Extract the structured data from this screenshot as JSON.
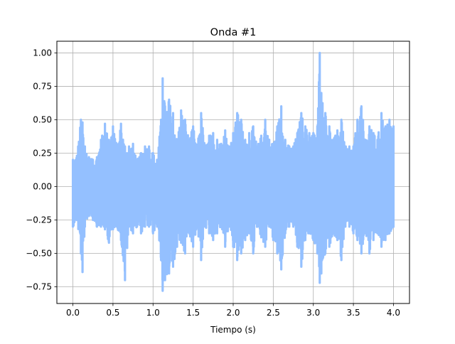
{
  "chart_data": {
    "type": "line",
    "title": "Onda #1",
    "xlabel": "Tiempo (s)",
    "ylabel": "",
    "xlim": [
      -0.2,
      4.2
    ],
    "ylim": [
      -0.875,
      1.0875
    ],
    "x_ticks": [
      0.0,
      0.5,
      1.0,
      1.5,
      2.0,
      2.5,
      3.0,
      3.5,
      4.0
    ],
    "x_tick_labels": [
      "0.0",
      "0.5",
      "1.0",
      "1.5",
      "2.0",
      "2.5",
      "3.0",
      "3.5",
      "4.0"
    ],
    "y_ticks": [
      -0.75,
      -0.5,
      -0.25,
      0.0,
      0.25,
      0.5,
      0.75,
      1.0
    ],
    "y_tick_labels": [
      "−0.75",
      "−0.50",
      "−0.25",
      "0.00",
      "0.25",
      "0.50",
      "0.75",
      "1.00"
    ],
    "grid": true,
    "series_color": "#94c0ff",
    "series": [
      {
        "x": [
          0.0,
          0.05,
          0.1,
          0.12,
          0.15,
          0.2,
          0.25,
          0.3,
          0.35,
          0.4,
          0.45,
          0.5,
          0.55,
          0.6,
          0.65,
          0.7,
          0.75,
          0.8,
          0.85,
          0.9,
          0.95,
          1.0,
          1.05,
          1.1,
          1.12,
          1.15,
          1.2,
          1.25,
          1.3,
          1.35,
          1.4,
          1.45,
          1.5,
          1.55,
          1.6,
          1.65,
          1.7,
          1.75,
          1.8,
          1.85,
          1.9,
          1.95,
          2.0,
          2.05,
          2.1,
          2.15,
          2.2,
          2.25,
          2.3,
          2.35,
          2.4,
          2.45,
          2.5,
          2.55,
          2.6,
          2.65,
          2.7,
          2.75,
          2.8,
          2.85,
          2.9,
          2.95,
          3.0,
          3.05,
          3.08,
          3.1,
          3.15,
          3.2,
          3.25,
          3.3,
          3.35,
          3.4,
          3.45,
          3.5,
          3.55,
          3.6,
          3.65,
          3.7,
          3.75,
          3.8,
          3.85,
          3.9,
          3.95,
          4.0
        ],
        "upper": [
          0.2,
          0.23,
          0.5,
          0.48,
          0.3,
          0.22,
          0.2,
          0.22,
          0.35,
          0.47,
          0.35,
          0.45,
          0.3,
          0.47,
          0.3,
          0.3,
          0.32,
          0.2,
          0.25,
          0.3,
          0.3,
          0.25,
          0.2,
          0.5,
          0.81,
          0.6,
          0.65,
          0.55,
          0.35,
          0.57,
          0.5,
          0.35,
          0.45,
          0.3,
          0.55,
          0.3,
          0.38,
          0.4,
          0.35,
          0.32,
          0.42,
          0.3,
          0.4,
          0.55,
          0.5,
          0.35,
          0.4,
          0.45,
          0.3,
          0.38,
          0.5,
          0.35,
          0.32,
          0.45,
          0.6,
          0.35,
          0.3,
          0.3,
          0.4,
          0.55,
          0.45,
          0.4,
          0.4,
          0.45,
          1.0,
          0.7,
          0.55,
          0.45,
          0.35,
          0.42,
          0.5,
          0.3,
          0.3,
          0.3,
          0.5,
          0.6,
          0.35,
          0.45,
          0.4,
          0.35,
          0.55,
          0.45,
          0.5,
          0.45
        ],
        "lower": [
          -0.3,
          -0.25,
          -0.5,
          -0.64,
          -0.3,
          -0.22,
          -0.25,
          -0.3,
          -0.3,
          -0.32,
          -0.42,
          -0.32,
          -0.3,
          -0.4,
          -0.7,
          -0.3,
          -0.35,
          -0.3,
          -0.35,
          -0.3,
          -0.3,
          -0.35,
          -0.3,
          -0.55,
          -0.78,
          -0.7,
          -0.65,
          -0.6,
          -0.45,
          -0.42,
          -0.5,
          -0.35,
          -0.45,
          -0.3,
          -0.55,
          -0.3,
          -0.35,
          -0.4,
          -0.35,
          -0.3,
          -0.45,
          -0.3,
          -0.45,
          -0.55,
          -0.5,
          -0.4,
          -0.35,
          -0.5,
          -0.3,
          -0.38,
          -0.45,
          -0.3,
          -0.4,
          -0.5,
          -0.62,
          -0.35,
          -0.3,
          -0.3,
          -0.45,
          -0.6,
          -0.4,
          -0.35,
          -0.4,
          -0.5,
          -0.72,
          -0.65,
          -0.5,
          -0.45,
          -0.35,
          -0.4,
          -0.55,
          -0.3,
          -0.3,
          -0.35,
          -0.4,
          -0.5,
          -0.35,
          -0.5,
          -0.4,
          -0.35,
          -0.45,
          -0.4,
          -0.35,
          -0.3
        ]
      }
    ]
  }
}
